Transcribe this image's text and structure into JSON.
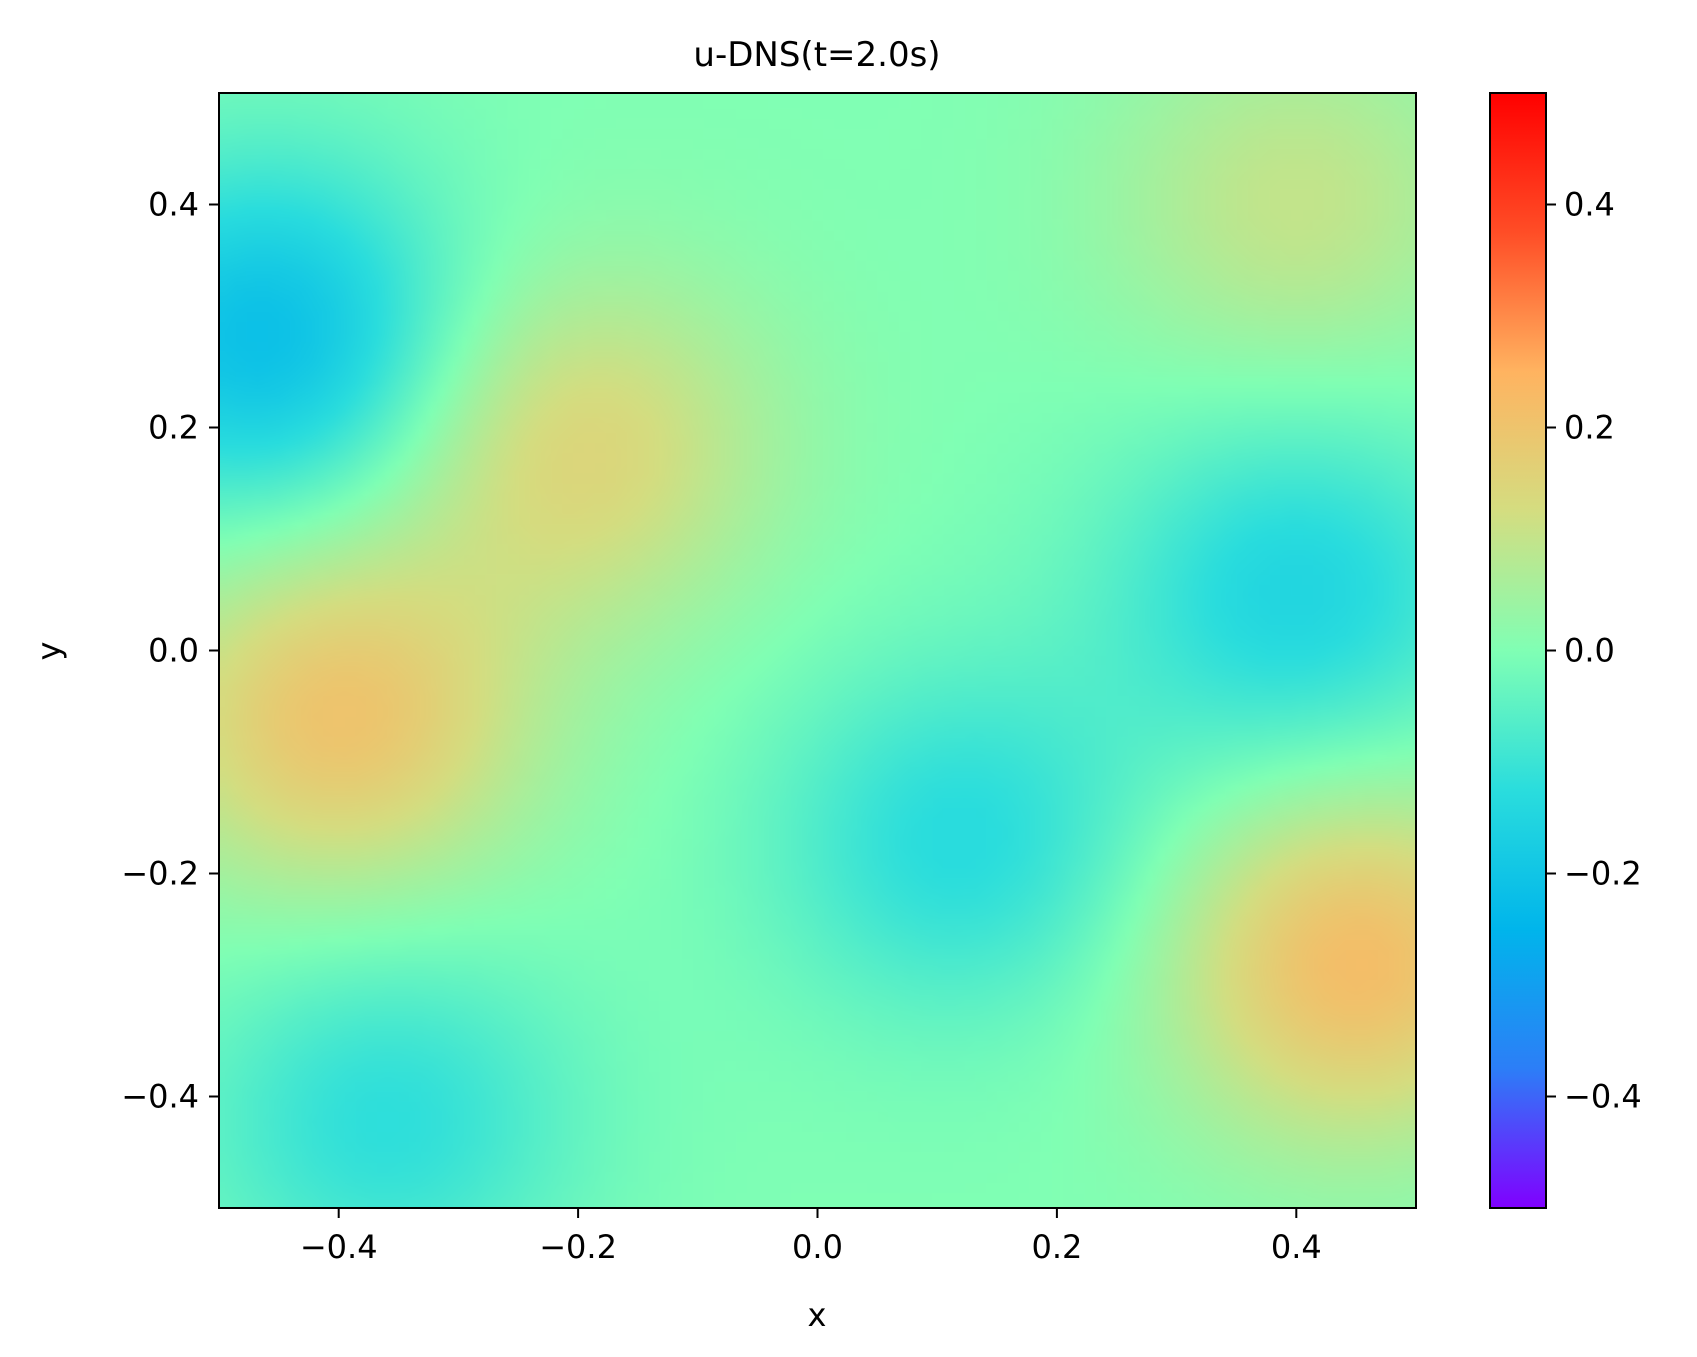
{
  "chart_data": {
    "type": "heatmap",
    "title": "u-DNS(t=2.0s)",
    "xlabel": "x",
    "ylabel": "y",
    "xlim": [
      -0.5,
      0.5
    ],
    "ylim": [
      -0.5,
      0.5
    ],
    "x_ticks": [
      -0.4,
      -0.2,
      0.0,
      0.2,
      0.4
    ],
    "y_ticks": [
      -0.4,
      -0.2,
      0.0,
      0.2,
      0.4
    ],
    "x_tick_labels": [
      "−0.4",
      "−0.2",
      "0.0",
      "0.2",
      "0.4"
    ],
    "y_tick_labels": [
      "−0.4",
      "−0.2",
      "0.0",
      "0.2",
      "0.4"
    ],
    "colorbar": {
      "range": [
        -0.5,
        0.5
      ],
      "ticks": [
        -0.4,
        -0.2,
        0.0,
        0.2,
        0.4
      ],
      "tick_labels": [
        "−0.4",
        "−0.2",
        "0.0",
        "0.2",
        "0.4"
      ],
      "colormap": "rainbow",
      "colors": [
        "#8000ff",
        "#2c7ef7",
        "#00b5eb",
        "#2adddd",
        "#80ffb4",
        "#d4dd80",
        "#ffb360",
        "#ff4d26",
        "#ff0000"
      ]
    },
    "grid": false,
    "field_features": [
      {
        "x": 0.4,
        "y": 0.05,
        "value": -0.15
      },
      {
        "x": 0.12,
        "y": -0.17,
        "value": -0.13
      },
      {
        "x": -0.46,
        "y": 0.28,
        "value": -0.22
      },
      {
        "x": -0.36,
        "y": -0.42,
        "value": -0.12
      },
      {
        "x": -0.4,
        "y": -0.06,
        "value": 0.2
      },
      {
        "x": -0.2,
        "y": 0.18,
        "value": 0.15
      },
      {
        "x": 0.45,
        "y": -0.28,
        "value": 0.22
      },
      {
        "x": 0.4,
        "y": 0.4,
        "value": 0.1
      }
    ]
  }
}
